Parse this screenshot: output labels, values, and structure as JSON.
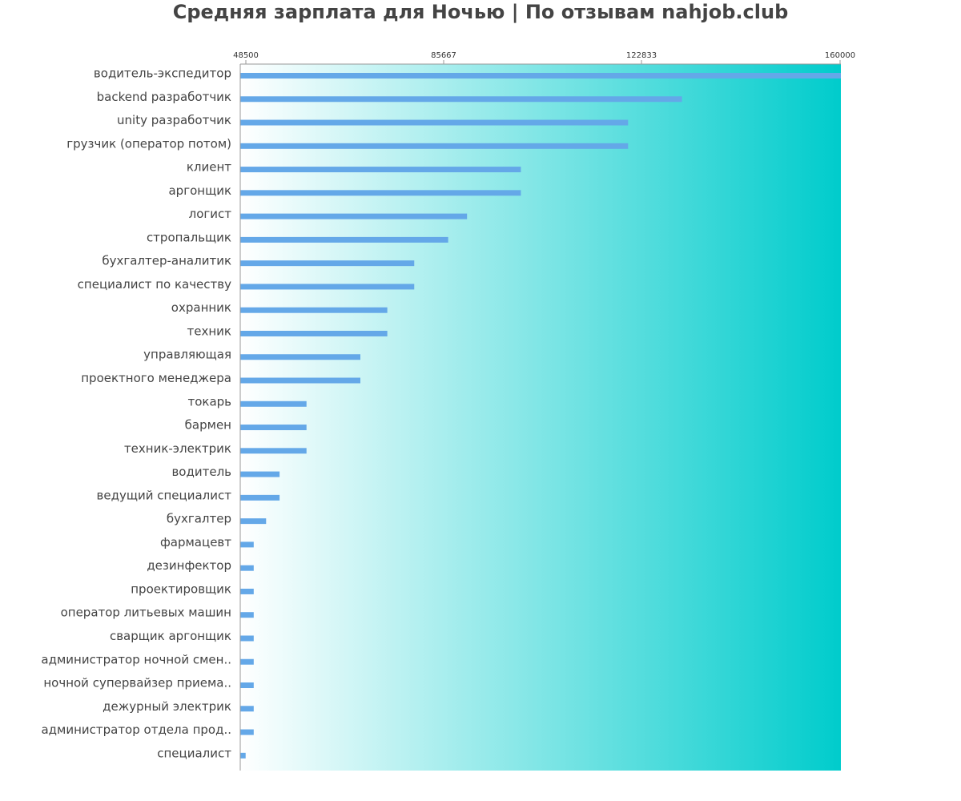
{
  "chart_data": {
    "type": "bar",
    "orientation": "horizontal",
    "title": "Средняя зарплата для Ночью | По отзывам nahjob.club",
    "xlabel": "",
    "ylabel": "",
    "xlim": [
      48500,
      160000
    ],
    "x_ticks": [
      "48500",
      "85667",
      "122833",
      "160000"
    ],
    "grid": false,
    "legend": "none",
    "colors": {
      "bar": "#64a8e8",
      "bg_start": "#ffffff",
      "bg_end": "#00cccc",
      "axis": "#999999"
    },
    "categories": [
      "водитель-экспедитор",
      "backend разработчик",
      "unity разработчик",
      "грузчик (оператор потом)",
      "клиент",
      "аргонщик",
      "логист",
      "стропальщик",
      "бухгалтер-аналитик",
      "специалист по качеству",
      "охранник",
      "техник",
      "управляющая",
      "проектного менеджера",
      "токарь",
      "бармен",
      "техник-электрик",
      "водитель",
      "ведущий специалист",
      "бухгалтер",
      "фармацевт",
      "дезинфектор",
      "проектировщик",
      "оператор литьевых машин",
      "сварщик аргонщик",
      "администратор ночной смен..",
      "ночной супервайзер приема..",
      "дежурный электрик",
      "администратор отдела прод..",
      "специалист"
    ],
    "values": [
      160000,
      130500,
      120500,
      120500,
      100600,
      100600,
      90600,
      87100,
      80800,
      80800,
      75800,
      75800,
      70800,
      70800,
      60800,
      60800,
      60800,
      55800,
      55800,
      53300,
      51000,
      51000,
      51000,
      51000,
      51000,
      51000,
      51000,
      51000,
      51000,
      49500
    ]
  }
}
